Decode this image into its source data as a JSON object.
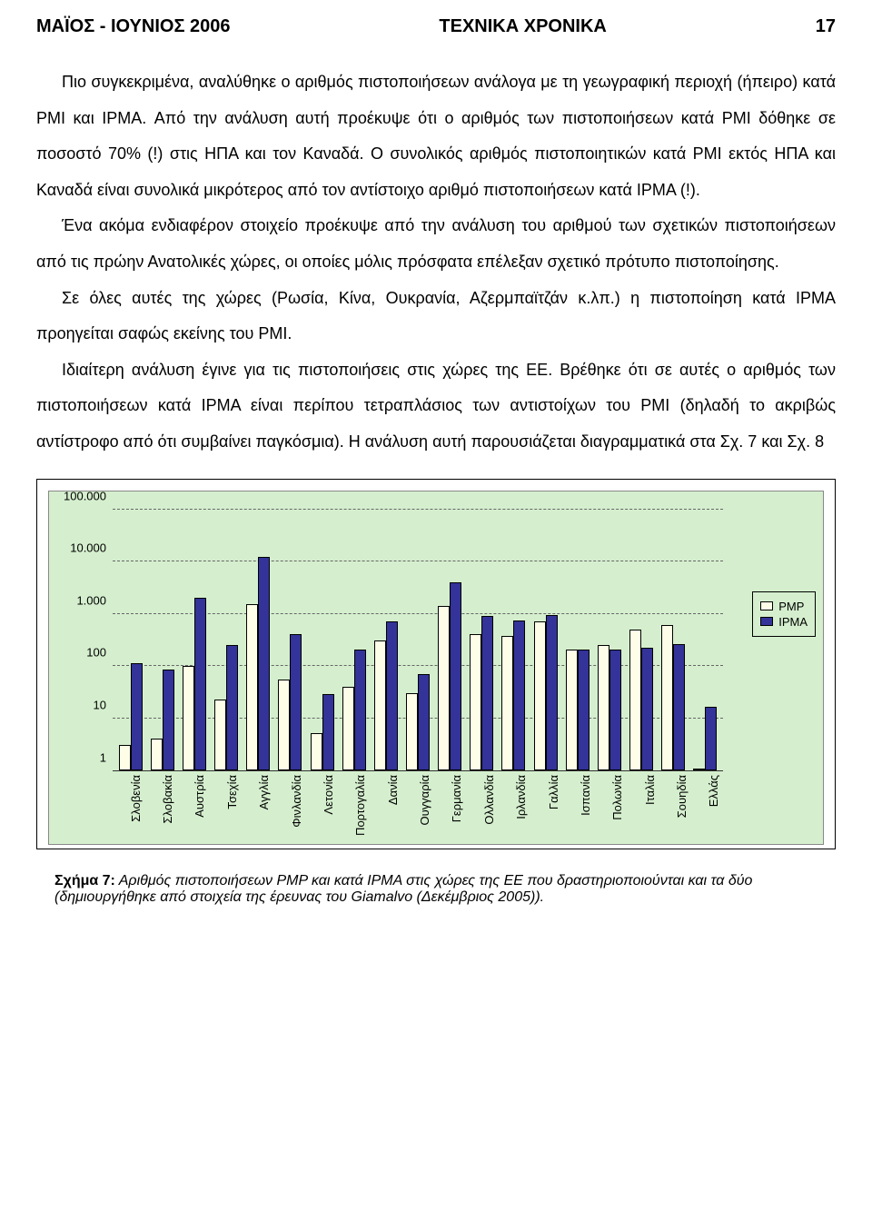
{
  "header": {
    "left": "ΜΑΪΟΣ - ΙΟΥΝΙΟΣ 2006",
    "center": "ΤΕΧΝΙΚΑ ΧΡΟΝΙΚΑ",
    "page": "17"
  },
  "paragraphs": {
    "p1": "Πιο συγκεκριμένα, αναλύθηκε ο αριθμός πιστοποιήσεων ανάλογα με τη γεωγραφική περιοχή (ήπειρο) κατά PMI και IPMA. Από την ανάλυση αυτή προέκυψε ότι ο αριθμός των πιστοποιήσεων κατά PMI δόθηκε σε ποσοστό 70% (!) στις ΗΠΑ και τον Καναδά. Ο συνολικός αριθμός πιστοποιητικών κατά PMI εκτός ΗΠΑ και Καναδά είναι συνολικά μικρότερος από τον αντίστοιχο αριθμό πιστοποιήσεων κατά IPMA (!).",
    "p2": "Ένα ακόμα ενδιαφέρον στοιχείο προέκυψε από την ανάλυση του αριθμού των σχετικών πιστοποιήσεων από τις πρώην Ανατολικές χώρες, οι οποίες μόλις πρόσφατα επέλεξαν σχετικό πρότυπο πιστοποίησης.",
    "p3": "Σε όλες αυτές της χώρες (Ρωσία, Κίνα, Ουκρανία, Αζερμπαϊτζάν κ.λπ.) η πιστοποίηση κατά IPMA προηγείται σαφώς εκείνης του PMI.",
    "p4": "Ιδιαίτερη ανάλυση έγινε για τις πιστοποιήσεις στις χώρες της EE. Βρέθηκε ότι σε αυτές ο αριθμός των πιστοποιήσεων κατά IPMA είναι περίπου τετραπλάσιος των αντιστοίχων του PMI (δηλαδή το ακριβώς αντίστροφο από ότι συμβαίνει παγκόσμια). Η ανάλυση αυτή παρουσιάζεται διαγραμματικά στα Σχ. 7 και Σχ. 8"
  },
  "chart": {
    "type": "bar",
    "yscale": "log",
    "ylim": [
      1,
      100000
    ],
    "yticks": [
      {
        "v": 1,
        "label": "1"
      },
      {
        "v": 10,
        "label": "10"
      },
      {
        "v": 100,
        "label": "100"
      },
      {
        "v": 1000,
        "label": "1.000"
      },
      {
        "v": 10000,
        "label": "10.000"
      },
      {
        "v": 100000,
        "label": "100.000"
      }
    ],
    "background_color": "#d5efce",
    "grid_color": "#666666",
    "legend": {
      "pmp": "PMP",
      "ipma": "IPMA"
    },
    "colors": {
      "pmp": "#fdfde8",
      "ipma": "#333399"
    },
    "categories": [
      {
        "label": "Σλοβενία",
        "pmp": 3,
        "ipma": 110
      },
      {
        "label": "Σλοβακία",
        "pmp": 4,
        "ipma": 85
      },
      {
        "label": "Αυστρία",
        "pmp": 100,
        "ipma": 2000
      },
      {
        "label": "Τσεχία",
        "pmp": 22,
        "ipma": 250
      },
      {
        "label": "Αγγλία",
        "pmp": 1500,
        "ipma": 12000
      },
      {
        "label": "Φινλανδία",
        "pmp": 55,
        "ipma": 400
      },
      {
        "label": "Λετονία",
        "pmp": 5,
        "ipma": 28
      },
      {
        "label": "Πορτογαλία",
        "pmp": 40,
        "ipma": 200
      },
      {
        "label": "Δανία",
        "pmp": 300,
        "ipma": 700
      },
      {
        "label": "Ουγγαρία",
        "pmp": 30,
        "ipma": 70
      },
      {
        "label": "Γερμανία",
        "pmp": 1400,
        "ipma": 4000
      },
      {
        "label": "Ολλανδία",
        "pmp": 400,
        "ipma": 900
      },
      {
        "label": "Ιρλανδία",
        "pmp": 370,
        "ipma": 730
      },
      {
        "label": "Γαλλία",
        "pmp": 700,
        "ipma": 950
      },
      {
        "label": "Ισπανία",
        "pmp": 200,
        "ipma": 200
      },
      {
        "label": "Πολωνία",
        "pmp": 250,
        "ipma": 200
      },
      {
        "label": "Ιταλία",
        "pmp": 500,
        "ipma": 220
      },
      {
        "label": "Σουηδία",
        "pmp": 600,
        "ipma": 260
      },
      {
        "label": "Ελλάς",
        "pmp": 1,
        "ipma": 16
      }
    ]
  },
  "caption": {
    "bold": "Σχήμα 7:",
    "text": " Αριθμός πιστοποιήσεων PMP και κατά IPMA στις χώρες της EE που δραστηριοποιούνται και τα δύο (δημιουργήθηκε από στοιχεία της έρευνας του Giamalvo (Δεκέμβριος 2005))."
  }
}
